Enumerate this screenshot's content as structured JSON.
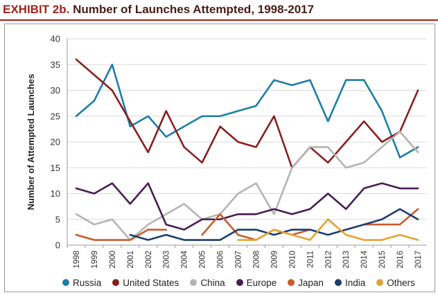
{
  "header": {
    "exhibit": "EXHIBIT 2b.",
    "title": "Number of Launches Attempted, 1998-2017"
  },
  "chart_data": {
    "type": "line",
    "title": "Number of Launches Attempted, 1998-2017",
    "xlabel": "",
    "ylabel": "Number of Attempted Launches",
    "ylim": [
      0,
      40
    ],
    "yticks": [
      0,
      5,
      10,
      15,
      20,
      25,
      30,
      35,
      40
    ],
    "grid": true,
    "legend_position": "bottom",
    "x": [
      "1998",
      "1999",
      "2000",
      "2001",
      "2002",
      "2003",
      "2004",
      "2005",
      "2006",
      "2007",
      "2008",
      "2009",
      "2010",
      "2011",
      "2012",
      "2013",
      "2014",
      "2015",
      "2016",
      "2017"
    ],
    "series": [
      {
        "name": "Russia",
        "color": "#1b7ea8",
        "values": [
          25,
          28,
          35,
          23,
          25,
          21,
          23,
          25,
          25,
          26,
          27,
          32,
          31,
          32,
          24,
          32,
          32,
          26,
          17,
          19
        ]
      },
      {
        "name": "United States",
        "color": "#8a1d1d",
        "values": [
          36,
          33,
          30,
          24,
          18,
          26,
          19,
          16,
          23,
          20,
          19,
          25,
          15,
          19,
          16,
          20,
          24,
          20,
          22,
          30
        ]
      },
      {
        "name": "China",
        "color": "#b4b4b4",
        "values": [
          6,
          4,
          5,
          1,
          4,
          6,
          8,
          5,
          6,
          10,
          12,
          6,
          15,
          19,
          19,
          15,
          16,
          19,
          22,
          18
        ]
      },
      {
        "name": "Europe",
        "color": "#4a1b55",
        "values": [
          11,
          10,
          12,
          8,
          12,
          4,
          3,
          5,
          5,
          6,
          6,
          7,
          6,
          7,
          10,
          7,
          11,
          12,
          11,
          11
        ]
      },
      {
        "name": "Japan",
        "color": "#cc5a2a",
        "values": [
          2,
          1,
          1,
          1,
          3,
          3,
          null,
          2,
          6,
          2,
          1,
          3,
          2,
          3,
          null,
          null,
          4,
          4,
          4,
          7
        ]
      },
      {
        "name": "India",
        "color": "#1a3c6e",
        "values": [
          null,
          null,
          null,
          2,
          1,
          2,
          1,
          1,
          1,
          3,
          3,
          2,
          3,
          3,
          2,
          3,
          4,
          5,
          7,
          5
        ]
      },
      {
        "name": "Others",
        "color": "#e3a331",
        "values": [
          null,
          null,
          null,
          null,
          null,
          null,
          null,
          null,
          null,
          1,
          1,
          3,
          2,
          1,
          5,
          2,
          1,
          1,
          2,
          1
        ]
      }
    ]
  }
}
